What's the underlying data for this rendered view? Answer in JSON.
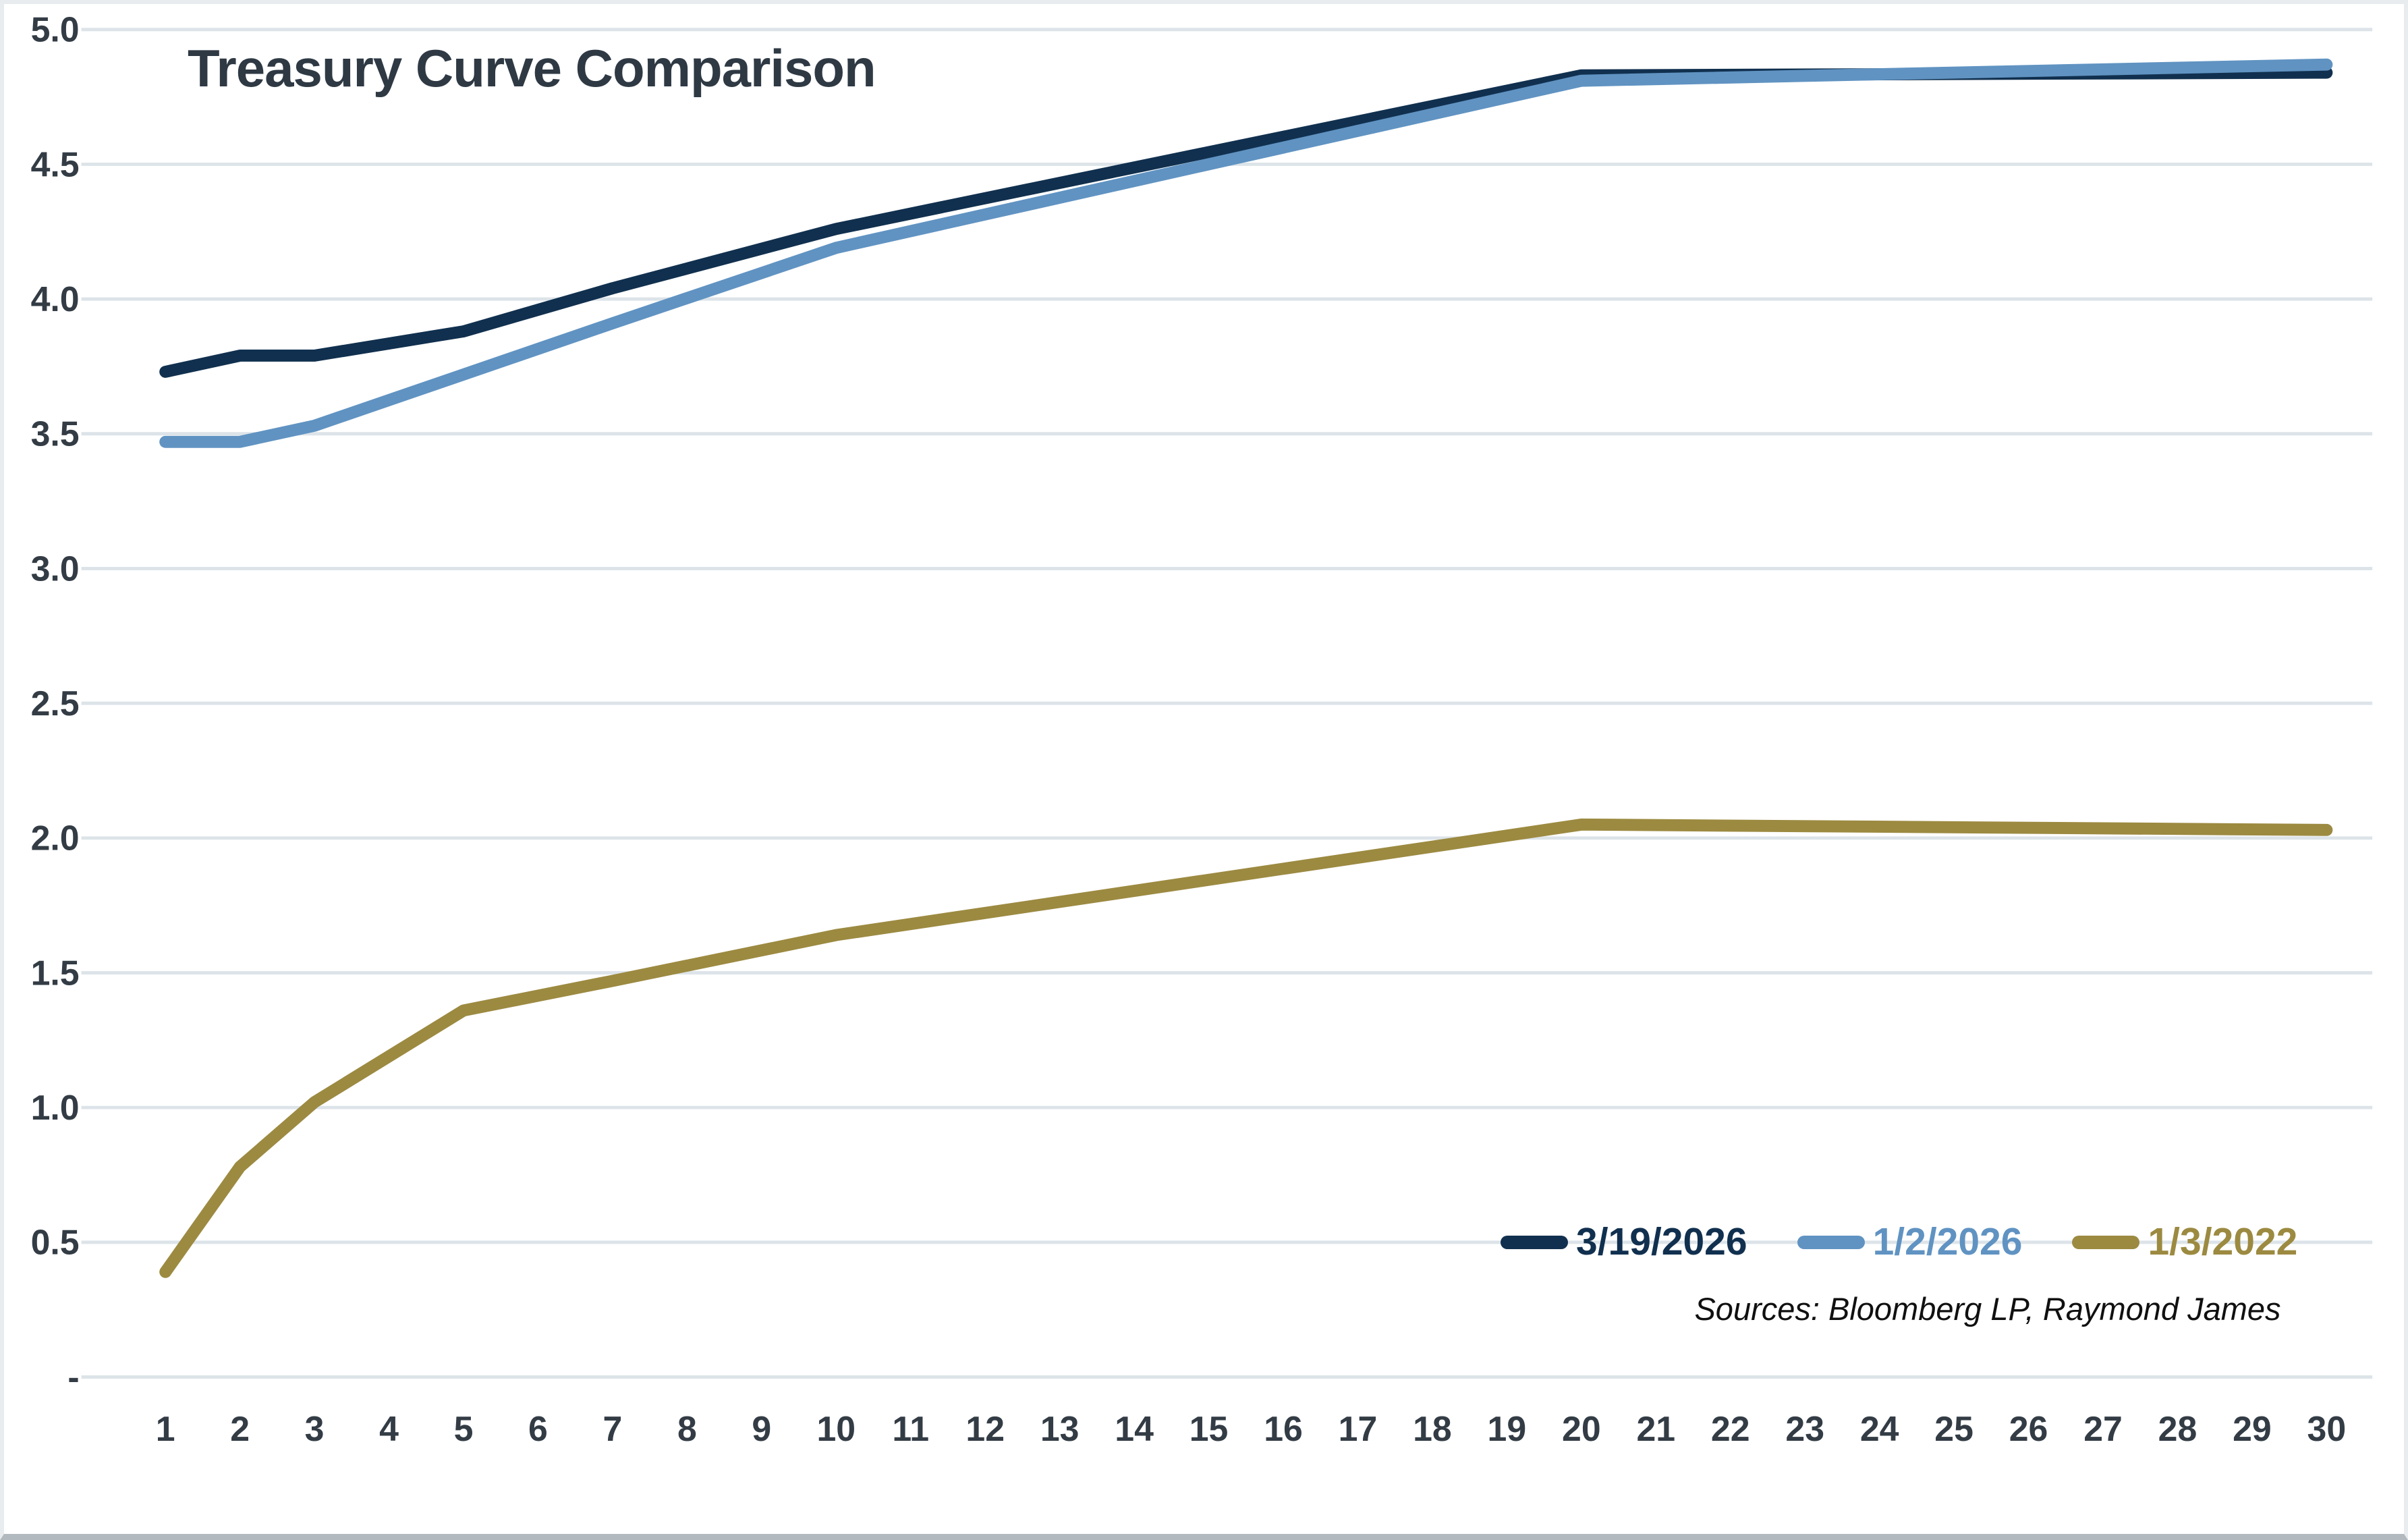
{
  "title": "Treasury Curve Comparison",
  "source_note": "Sources: Bloomberg LP, Raymond James",
  "chart_data": {
    "type": "line",
    "title": "Treasury Curve Comparison",
    "xlabel": "",
    "ylabel": "",
    "xlim": [
      1,
      30
    ],
    "ylim": [
      0,
      5.0
    ],
    "grid": "horizontal",
    "legend_position": "inside-bottom-right",
    "x_ticks": [
      "1",
      "2",
      "3",
      "4",
      "5",
      "6",
      "7",
      "8",
      "9",
      "10",
      "11",
      "12",
      "13",
      "14",
      "15",
      "16",
      "17",
      "18",
      "19",
      "20",
      "21",
      "22",
      "23",
      "24",
      "25",
      "26",
      "27",
      "28",
      "29",
      "30"
    ],
    "y_ticks": [
      {
        "label": "5.0",
        "value": 5.0
      },
      {
        "label": "4.5",
        "value": 4.5
      },
      {
        "label": "4.0",
        "value": 4.0
      },
      {
        "label": "3.5",
        "value": 3.5
      },
      {
        "label": "3.0",
        "value": 3.0
      },
      {
        "label": "2.5",
        "value": 2.5
      },
      {
        "label": "2.0",
        "value": 2.0
      },
      {
        "label": "1.5",
        "value": 1.5
      },
      {
        "label": "1.0",
        "value": 1.0
      },
      {
        "label": "0.5",
        "value": 0.5
      },
      {
        "label": "-",
        "value": 0
      }
    ],
    "series": [
      {
        "name": "3/19/2026",
        "color": "#11304f",
        "points": [
          [
            1,
            3.73
          ],
          [
            2,
            3.79
          ],
          [
            3,
            3.79
          ],
          [
            5,
            3.88
          ],
          [
            7,
            4.04
          ],
          [
            10,
            4.26
          ],
          [
            20,
            4.83
          ],
          [
            30,
            4.84
          ]
        ]
      },
      {
        "name": "1/2/2026",
        "color": "#6093c2",
        "points": [
          [
            1,
            3.47
          ],
          [
            2,
            3.47
          ],
          [
            3,
            3.53
          ],
          [
            5,
            3.72
          ],
          [
            7,
            3.91
          ],
          [
            10,
            4.19
          ],
          [
            20,
            4.81
          ],
          [
            30,
            4.87
          ]
        ]
      },
      {
        "name": "1/3/2022",
        "color": "#9c8a41",
        "points": [
          [
            1,
            0.39
          ],
          [
            2,
            0.78
          ],
          [
            3,
            1.02
          ],
          [
            5,
            1.36
          ],
          [
            7,
            1.47
          ],
          [
            10,
            1.64
          ],
          [
            20,
            2.05
          ],
          [
            30,
            2.03
          ]
        ]
      }
    ]
  },
  "colors": {
    "grid": "#dde4e9",
    "axis_text": "#333c45",
    "title_text": "#2e3944",
    "source_text": "#101010"
  }
}
